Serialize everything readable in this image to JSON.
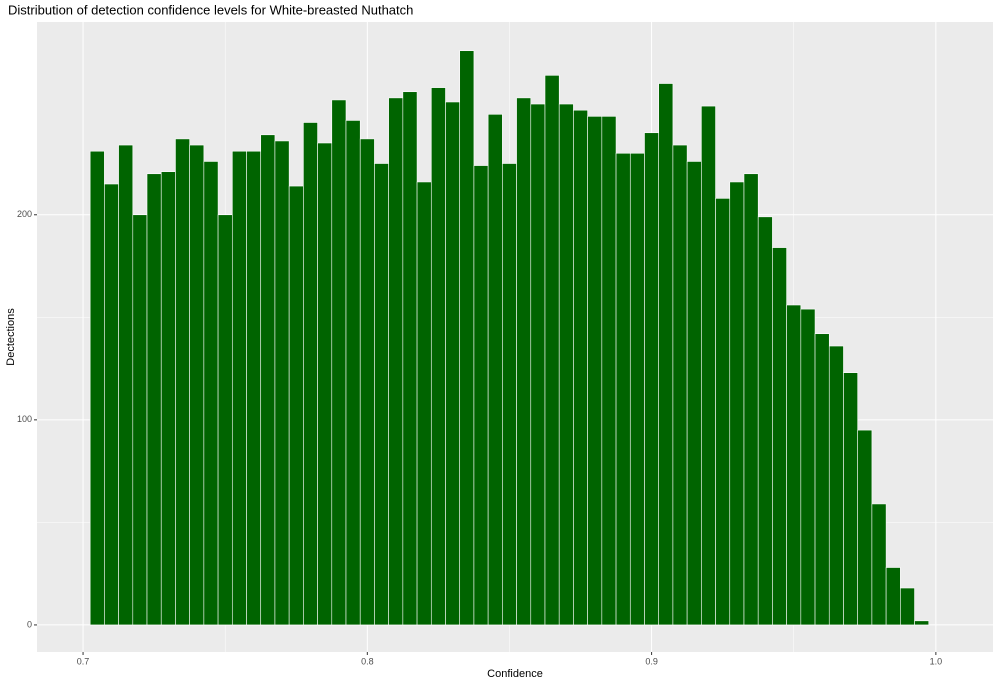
{
  "chart_data": {
    "type": "histogram",
    "title": "Distribution of detection confidence levels for White-breasted Nuthatch",
    "x_label": "Confidence",
    "y_label": "Dectections",
    "bins": [
      0.7025,
      0.7075,
      0.7125,
      0.7175,
      0.7225,
      0.7275,
      0.7325,
      0.7375,
      0.7425,
      0.7475,
      0.7525,
      0.7575,
      0.7625,
      0.7675,
      0.7725,
      0.7775,
      0.7825,
      0.7875,
      0.7925,
      0.7975,
      0.8025,
      0.8075,
      0.8125,
      0.8175,
      0.8225,
      0.8275,
      0.8325,
      0.8375,
      0.8425,
      0.8475,
      0.8525,
      0.8575,
      0.8625,
      0.8675,
      0.8725,
      0.8775,
      0.8825,
      0.8875,
      0.8925,
      0.8975,
      0.9025,
      0.9075,
      0.9125,
      0.9175,
      0.9225,
      0.9275,
      0.9325,
      0.9375,
      0.9425,
      0.9475,
      0.9525,
      0.9575,
      0.9625,
      0.9675,
      0.9725,
      0.9775,
      0.9825,
      0.9875,
      0.9925,
      0.9975
    ],
    "values": [
      231,
      215,
      234,
      200,
      220,
      221,
      237,
      234,
      226,
      200,
      231,
      231,
      239,
      236,
      214,
      245,
      235,
      256,
      246,
      237,
      225,
      257,
      260,
      216,
      262,
      255,
      280,
      224,
      249,
      225,
      257,
      254,
      268,
      254,
      251,
      248,
      248,
      230,
      230,
      240,
      264,
      234,
      226,
      253,
      208,
      216,
      220,
      199,
      184,
      156,
      154,
      142,
      136,
      123,
      95,
      59,
      28,
      18,
      2
    ],
    "color": "#006400",
    "xlim": [
      0.6838,
      1.0201
    ],
    "ylim": [
      -13.2,
      294
    ],
    "xticks": [
      0.7,
      0.8,
      0.9,
      {
        "value": 1.0,
        "label": "1.0"
      }
    ],
    "yticks": [
      0,
      100,
      200
    ],
    "grid": true
  }
}
